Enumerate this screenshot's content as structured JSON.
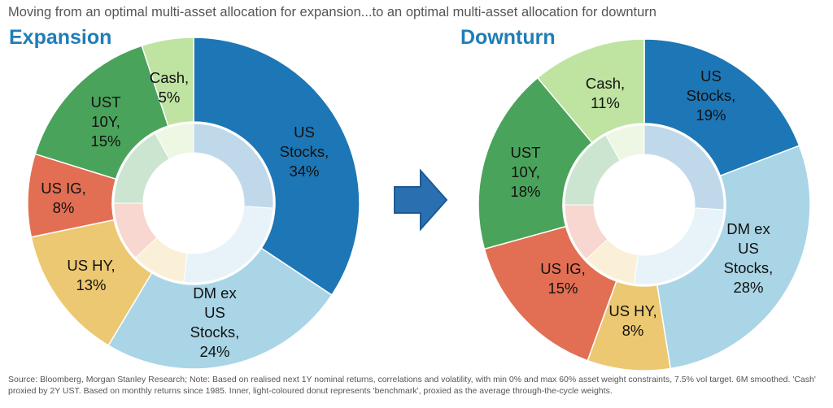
{
  "heading": "Moving from an optimal multi-asset allocation for expansion...to an optimal multi-asset allocation for downturn",
  "source": "Source: Bloomberg, Morgan Stanley Research; Note: Based on realised next 1Y nominal returns, correlations and volatility, with min 0% and max 60% asset weight constraints, 7.5% vol target. 6M smoothed. 'Cash' proxied by 2Y UST. Based on monthly returns since 1985. Inner, light-coloured donut represents 'benchmark', proxied as the average through-the-cycle weights.",
  "arrow_icon": "right-arrow-icon",
  "colors": {
    "US Stocks": "#1d76b5",
    "DM ex US Stocks": "#a9d5e6",
    "US HY": "#ecc872",
    "US IG": "#e26f53",
    "UST 10Y": "#4aa35b",
    "Cash": "#bfe3a0"
  },
  "chart_data": [
    {
      "type": "pie",
      "title": "Expansion",
      "slices": [
        {
          "name": "US Stocks",
          "value": 34,
          "label": [
            "US",
            "Stocks,",
            "34%"
          ]
        },
        {
          "name": "DM ex US Stocks",
          "value": 24,
          "label": [
            "DM ex",
            "US",
            "Stocks,",
            "24%"
          ]
        },
        {
          "name": "US HY",
          "value": 13,
          "label": [
            "US HY,",
            "13%"
          ]
        },
        {
          "name": "US IG",
          "value": 8,
          "label": [
            "US IG,",
            "8%"
          ]
        },
        {
          "name": "UST 10Y",
          "value": 15,
          "label": [
            "UST",
            "10Y,",
            "15%"
          ]
        },
        {
          "name": "Cash",
          "value": 5,
          "label": [
            "Cash,",
            "5%"
          ]
        }
      ]
    },
    {
      "type": "pie",
      "title": "Downturn",
      "slices": [
        {
          "name": "US Stocks",
          "value": 19,
          "label": [
            "US",
            "Stocks,",
            "19%"
          ]
        },
        {
          "name": "DM ex US Stocks",
          "value": 28,
          "label": [
            "DM ex",
            "US",
            "Stocks,",
            "28%"
          ]
        },
        {
          "name": "US HY",
          "value": 8,
          "label": [
            "US HY,",
            "8%"
          ]
        },
        {
          "name": "US IG",
          "value": 15,
          "label": [
            "US IG,",
            "15%"
          ]
        },
        {
          "name": "UST 10Y",
          "value": 18,
          "label": [
            "UST",
            "10Y,",
            "18%"
          ]
        },
        {
          "name": "Cash",
          "value": 11,
          "label": [
            "Cash,",
            "11%"
          ]
        }
      ]
    }
  ]
}
